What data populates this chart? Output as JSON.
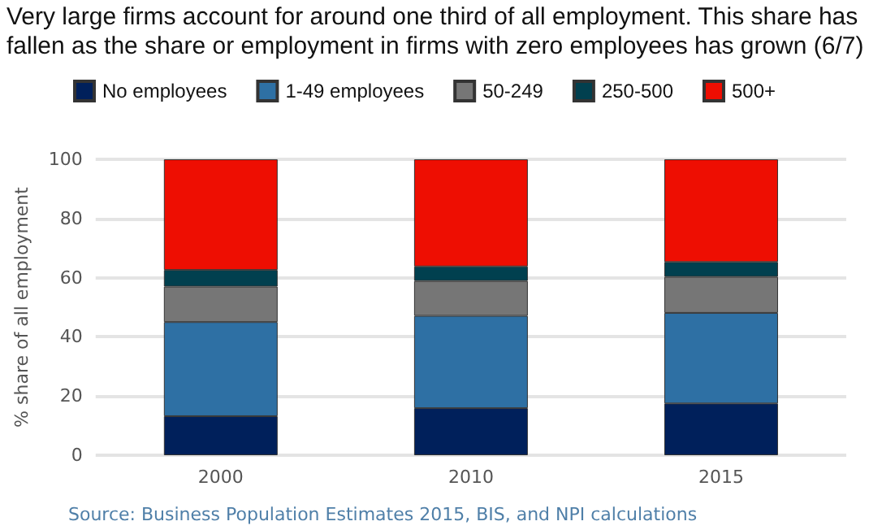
{
  "chart_data": {
    "type": "bar",
    "stacked": true,
    "title": "Very large firms account for around one third of all employment. This share has fallen as the share or employment in firms with zero employees has grown (6/7)",
    "ylabel": "% share of all employment",
    "categories": [
      "2000",
      "2010",
      "2015"
    ],
    "series": [
      {
        "name": "No employees",
        "color": "#00205b",
        "values": [
          13.2,
          15.9,
          17.5
        ]
      },
      {
        "name": "1-49 employees",
        "color": "#2e70a4",
        "values": [
          31.8,
          31.2,
          30.6
        ]
      },
      {
        "name": "50-249",
        "color": "#767676",
        "values": [
          12,
          11.8,
          12.2
        ]
      },
      {
        "name": "250-500",
        "color": "#01404f",
        "values": [
          5.6,
          4.9,
          5
        ]
      },
      {
        "name": "500+",
        "color": "#ee0e02",
        "values": [
          37.4,
          36.2,
          34.7
        ]
      }
    ],
    "ylim": [
      0,
      100
    ],
    "yticks": [
      0,
      20,
      40,
      60,
      80,
      100
    ],
    "grid": "y",
    "legend": "top",
    "annotations": [
      "Source: Business Population Estimates 2015, BIS, and NPI calculations"
    ]
  }
}
